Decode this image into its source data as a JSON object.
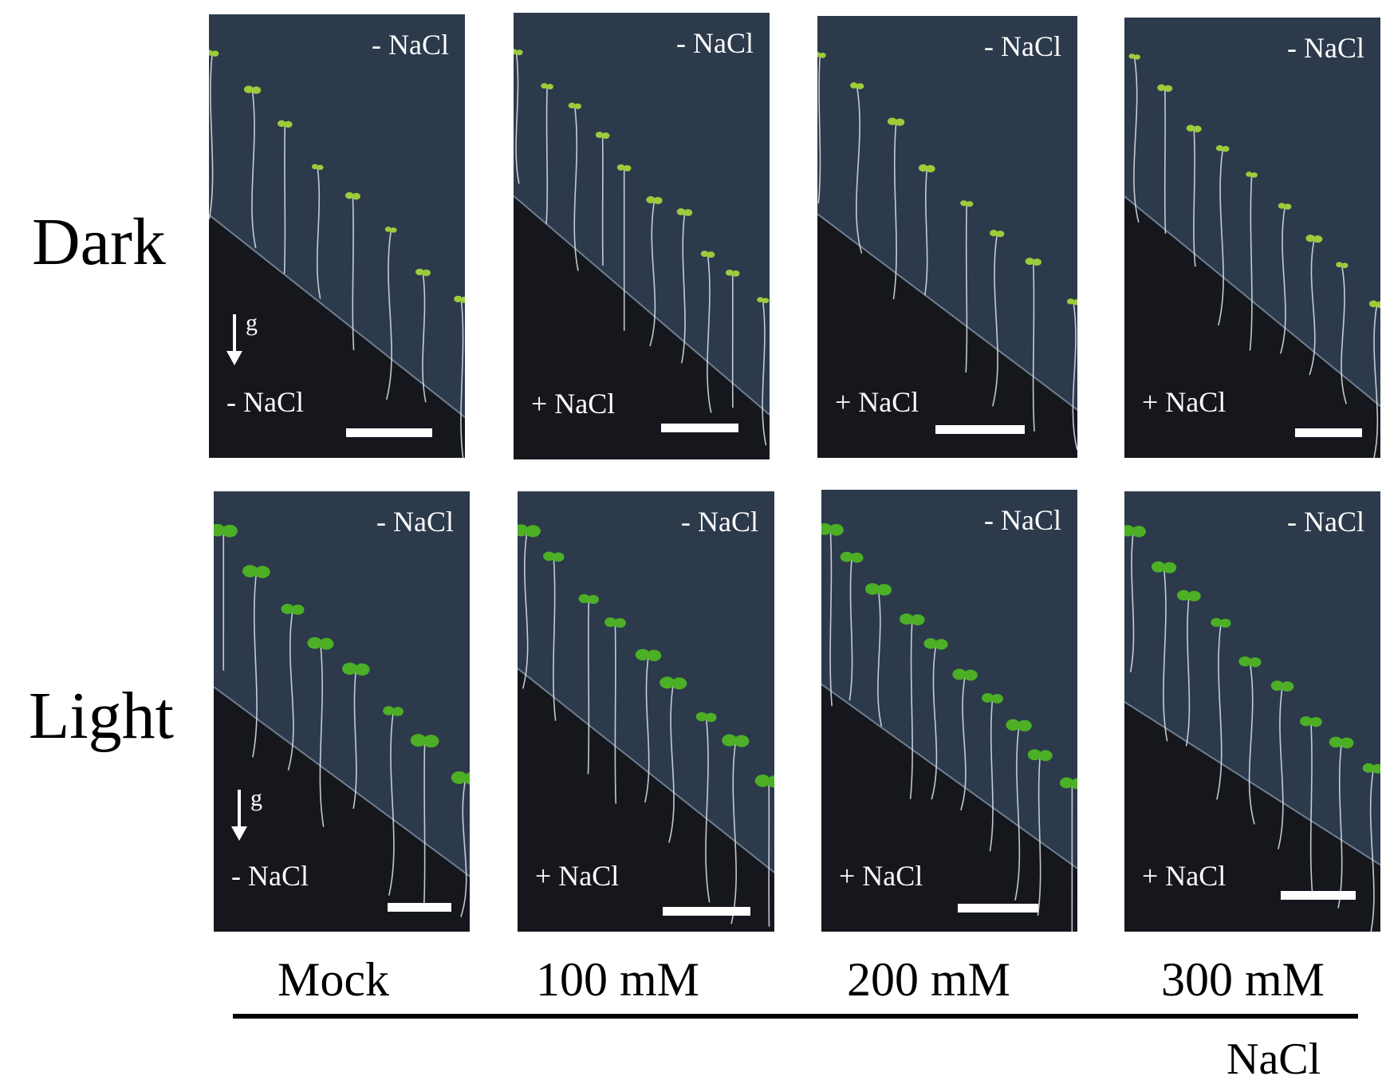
{
  "rows": [
    {
      "label": "Dark"
    },
    {
      "label": "Light"
    }
  ],
  "columns": [
    {
      "label": "Mock"
    },
    {
      "label": "100 mM"
    },
    {
      "label": "200 mM"
    },
    {
      "label": "300 mM"
    }
  ],
  "treatment_axis_label": "NaCl",
  "gravity_symbol": "g",
  "panels": [
    {
      "top_label": "- NaCl",
      "bottom_label": "- NaCl",
      "show_gravity": true
    },
    {
      "top_label": "- NaCl",
      "bottom_label": "+ NaCl",
      "show_gravity": false
    },
    {
      "top_label": "- NaCl",
      "bottom_label": "+ NaCl",
      "show_gravity": false
    },
    {
      "top_label": "- NaCl",
      "bottom_label": "+ NaCl",
      "show_gravity": false
    },
    {
      "top_label": "- NaCl",
      "bottom_label": "- NaCl",
      "show_gravity": true
    },
    {
      "top_label": "- NaCl",
      "bottom_label": "+ NaCl",
      "show_gravity": false
    },
    {
      "top_label": "- NaCl",
      "bottom_label": "+ NaCl",
      "show_gravity": false
    },
    {
      "top_label": "- NaCl",
      "bottom_label": "+ NaCl",
      "show_gravity": false
    }
  ],
  "colors": {
    "agar_top": "#2c3a4c",
    "agar_dark": "#1b1d22",
    "cotyledon_dark_grown": "#9ccc3a",
    "cotyledon_light_grown": "#4caf25",
    "root": "#dfe6ee"
  }
}
